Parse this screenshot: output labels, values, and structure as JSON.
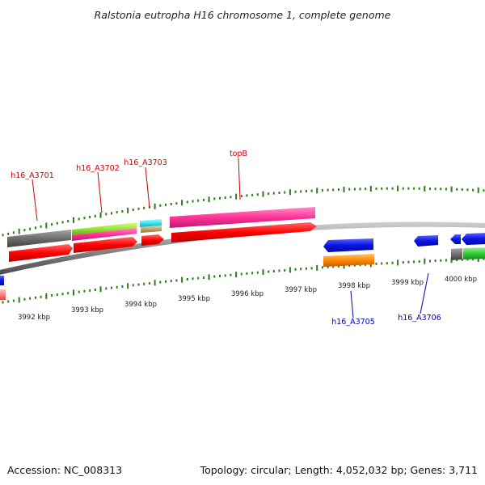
{
  "title": "Ralstonia eutropha H16 chromosome 1, complete genome",
  "accession": "Accession: NC_008313",
  "summary": "Topology: circular; Length: 4,052,032 bp; Genes: 3,711",
  "ruler_labels": [
    "3992 kbp",
    "3993 kbp",
    "3994 kbp",
    "3995 kbp",
    "3996 kbp",
    "3997 kbp",
    "3998 kbp",
    "3999 kbp",
    "4000 kbp"
  ],
  "gene_labels_top": [
    "h16_A3701",
    "h16_A3702",
    "h16_A3703",
    "topB"
  ],
  "gene_labels_bottom": [
    "h16_A3705",
    "h16_A3706"
  ],
  "colors": {
    "cds": "#ff0000",
    "gene_gray": "#707070",
    "gene_magenta": "#ff3399",
    "gene_lime": "#99e633",
    "gene_cyan": "#33e6f2",
    "gene_tan": "#bfa673",
    "gene_blue": "#0a14e6",
    "gene_orange": "#ff8800",
    "gene_green": "#33cc33",
    "gene_pink": "#ff8080",
    "tick": "#2a7a1a",
    "label_top": "#cc0000",
    "label_bottom": "#0000bb"
  }
}
